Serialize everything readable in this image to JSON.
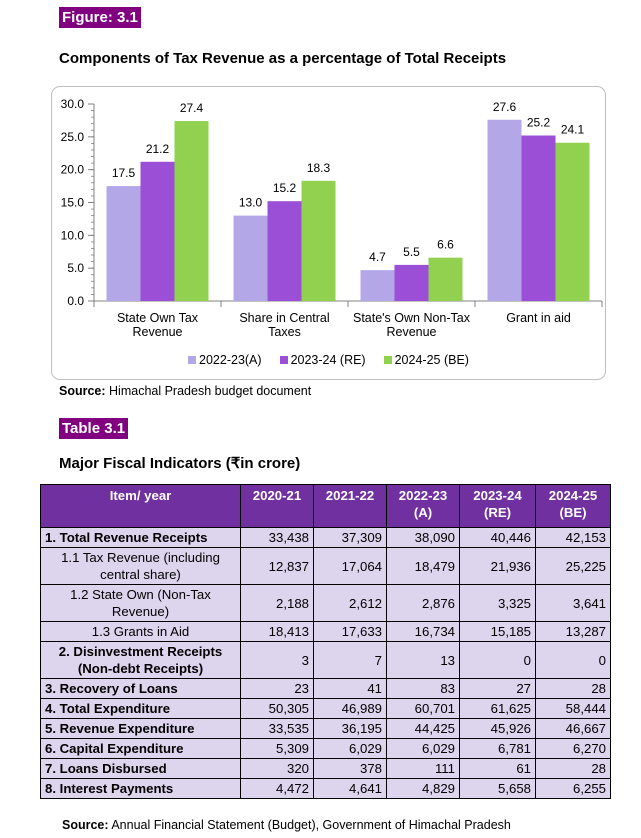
{
  "figure_label": "Figure: 3.1",
  "figure_title": "Components of Tax Revenue as a percentage of Total Receipts",
  "chart_data": {
    "type": "bar",
    "categories": [
      [
        "State Own Tax",
        "Revenue"
      ],
      [
        "Share in Central",
        "Taxes"
      ],
      [
        "State's Own Non-Tax",
        "Revenue"
      ],
      [
        "Grant in aid"
      ]
    ],
    "series": [
      {
        "name": "2022-23(A)",
        "color": "#b3a7e8",
        "values": [
          17.5,
          13.0,
          4.7,
          27.6
        ]
      },
      {
        "name": "2023-24 (RE)",
        "color": "#9b4fd6",
        "values": [
          21.2,
          15.2,
          5.5,
          25.2
        ]
      },
      {
        "name": "2024-25 (BE)",
        "color": "#92d050",
        "values": [
          27.4,
          18.3,
          6.6,
          24.1
        ]
      }
    ],
    "ylim": [
      0,
      30
    ],
    "yticks": [
      0,
      5,
      10,
      15,
      20,
      25,
      30
    ],
    "grid": false,
    "legend_position": "bottom"
  },
  "figure_source_label": "Source:",
  "figure_source_text": " Himachal Pradesh budget document",
  "table_label": "Table 3.1",
  "table_title": "Major Fiscal Indicators (₹in crore)",
  "table": {
    "headers": [
      {
        "line1": "Item/ year",
        "line2": ""
      },
      {
        "line1": "2020-21",
        "line2": ""
      },
      {
        "line1": "2021-22",
        "line2": ""
      },
      {
        "line1": "2022-23",
        "line2": "(A)"
      },
      {
        "line1": "2023-24",
        "line2": "(RE)"
      },
      {
        "line1": "2024-25",
        "line2": "(BE)"
      }
    ],
    "rows": [
      {
        "item": [
          "1. Total Revenue Receipts"
        ],
        "values": [
          "33,438",
          "37,309",
          "38,090",
          "40,446",
          "42,153"
        ],
        "bold": true,
        "sub": false
      },
      {
        "item": [
          "1.1 Tax Revenue (including",
          "central share)"
        ],
        "values": [
          "12,837",
          "17,064",
          "18,479",
          "21,936",
          "25,225"
        ],
        "bold": false,
        "sub": true
      },
      {
        "item": [
          "1.2 State Own (Non-Tax",
          "Revenue)"
        ],
        "values": [
          "2,188",
          "2,612",
          "2,876",
          "3,325",
          "3,641"
        ],
        "bold": false,
        "sub": true
      },
      {
        "item": [
          "1.3 Grants in Aid"
        ],
        "values": [
          "18,413",
          "17,633",
          "16,734",
          "15,185",
          "13,287"
        ],
        "bold": false,
        "sub": true
      },
      {
        "item": [
          "2.  Disinvestment Receipts",
          "(Non-debt Receipts)"
        ],
        "values": [
          "3",
          "7",
          "13",
          "0",
          "0"
        ],
        "bold": true,
        "sub": true
      },
      {
        "item": [
          "3.  Recovery of Loans"
        ],
        "values": [
          "23",
          "41",
          "83",
          "27",
          "28"
        ],
        "bold": true,
        "sub": false
      },
      {
        "item": [
          "4.  Total Expenditure"
        ],
        "values": [
          "50,305",
          "46,989",
          "60,701",
          "61,625",
          "58,444"
        ],
        "bold": true,
        "sub": false
      },
      {
        "item": [
          "5.  Revenue Expenditure"
        ],
        "values": [
          "33,535",
          "36,195",
          "44,425",
          "45,926",
          "46,667"
        ],
        "bold": true,
        "sub": false
      },
      {
        "item": [
          "6.  Capital Expenditure"
        ],
        "values": [
          "5,309",
          "6,029",
          "6,029",
          "6,781",
          "6,270"
        ],
        "bold": true,
        "sub": false
      },
      {
        "item": [
          "7.  Loans Disbursed"
        ],
        "values": [
          "320",
          "378",
          "111",
          "61",
          "28"
        ],
        "bold": true,
        "sub": false
      },
      {
        "item": [
          "8.  Interest Payments"
        ],
        "values": [
          "4,472",
          "4,641",
          "4,829",
          "5,658",
          "6,255"
        ],
        "bold": true,
        "sub": false
      }
    ]
  },
  "table_source_label": "Source:",
  "table_source_text": " Annual Financial Statement (Budget), Government of Himachal Pradesh"
}
